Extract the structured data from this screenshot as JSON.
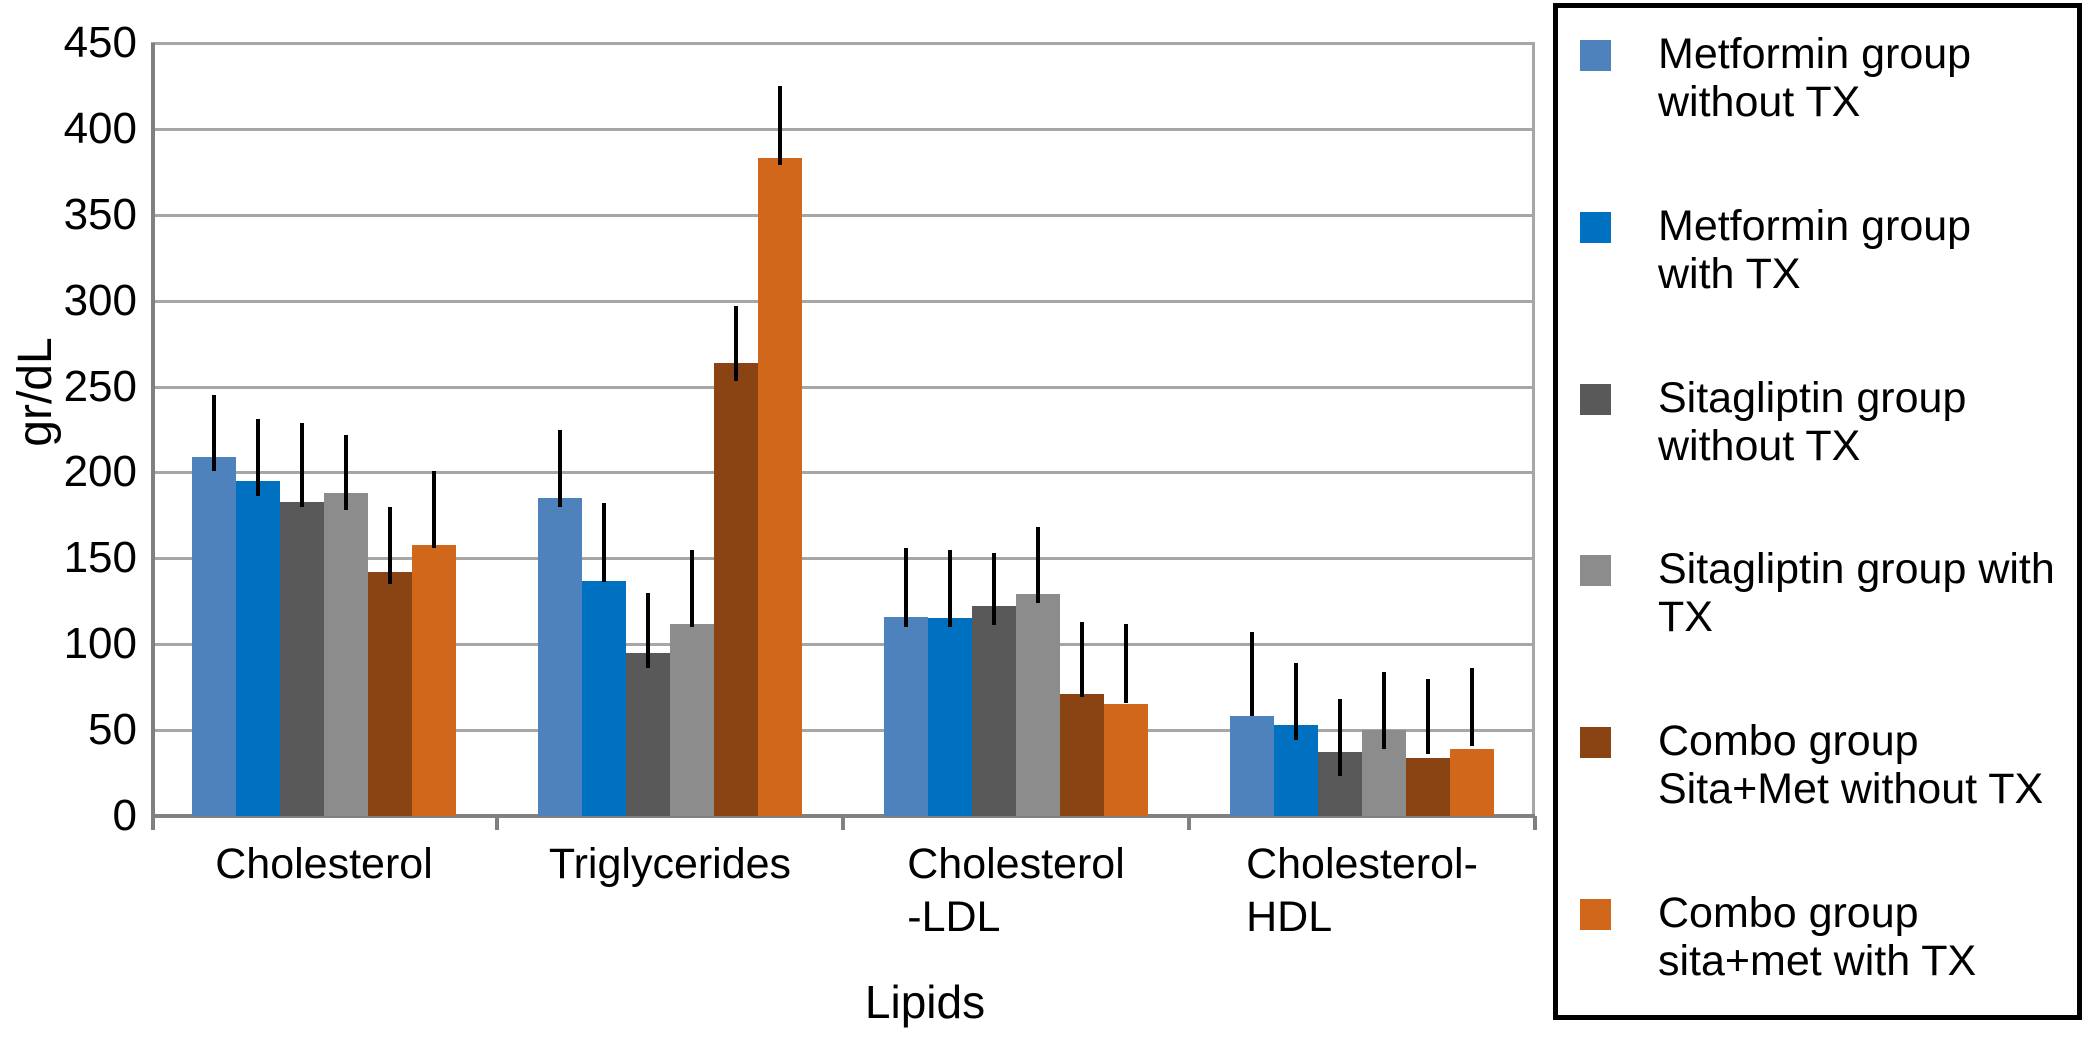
{
  "chart_data": {
    "type": "bar",
    "title": "",
    "ylabel": "gr/dL",
    "xlabel": "Lipids",
    "ylim": [
      0,
      450
    ],
    "ytick_step": 50,
    "yticks": [
      0,
      50,
      100,
      150,
      200,
      250,
      300,
      350,
      400,
      450
    ],
    "grid": true,
    "legend_position": "right",
    "error_bars": true,
    "categories": [
      "Cholesterol",
      "Triglycerides",
      "Cholesterol -LDL",
      "Cholesterol- HDL"
    ],
    "category_label_lines": [
      [
        "Cholesterol"
      ],
      [
        "Triglycerides"
      ],
      [
        "Cholesterol",
        "-LDL"
      ],
      [
        "Cholesterol-",
        "HDL"
      ]
    ],
    "series": [
      {
        "name": "Metformin group without TX",
        "color": "#4E82BD",
        "values": [
          209,
          185,
          116,
          58
        ],
        "error_low": [
          201,
          180,
          110,
          58
        ],
        "error_high": [
          245,
          225,
          156,
          107
        ]
      },
      {
        "name": "Metformin group with TX",
        "color": "#0070C0",
        "values": [
          195,
          137,
          115,
          53
        ],
        "error_low": [
          186,
          136,
          110,
          44
        ],
        "error_high": [
          231,
          182,
          155,
          89
        ]
      },
      {
        "name": "Sitagliptin group without TX",
        "color": "#595959",
        "values": [
          183,
          95,
          122,
          37
        ],
        "error_low": [
          180,
          86,
          111,
          23
        ],
        "error_high": [
          229,
          130,
          153,
          68
        ]
      },
      {
        "name": "Sitagliptin group with TX",
        "color": "#8C8C8C",
        "values": [
          188,
          112,
          129,
          50
        ],
        "error_low": [
          178,
          110,
          124,
          39
        ],
        "error_high": [
          222,
          155,
          168,
          84
        ]
      },
      {
        "name": "Combo group Sita+Met without TX",
        "color": "#8A4413",
        "values": [
          142,
          264,
          71,
          34
        ],
        "error_low": [
          135,
          253,
          69,
          36
        ],
        "error_high": [
          180,
          297,
          113,
          80
        ]
      },
      {
        "name": "Combo group sita+met with TX",
        "color": "#D0671B",
        "values": [
          158,
          383,
          65,
          39
        ],
        "error_low": [
          156,
          379,
          66,
          41
        ],
        "error_high": [
          201,
          425,
          112,
          86
        ]
      }
    ]
  }
}
